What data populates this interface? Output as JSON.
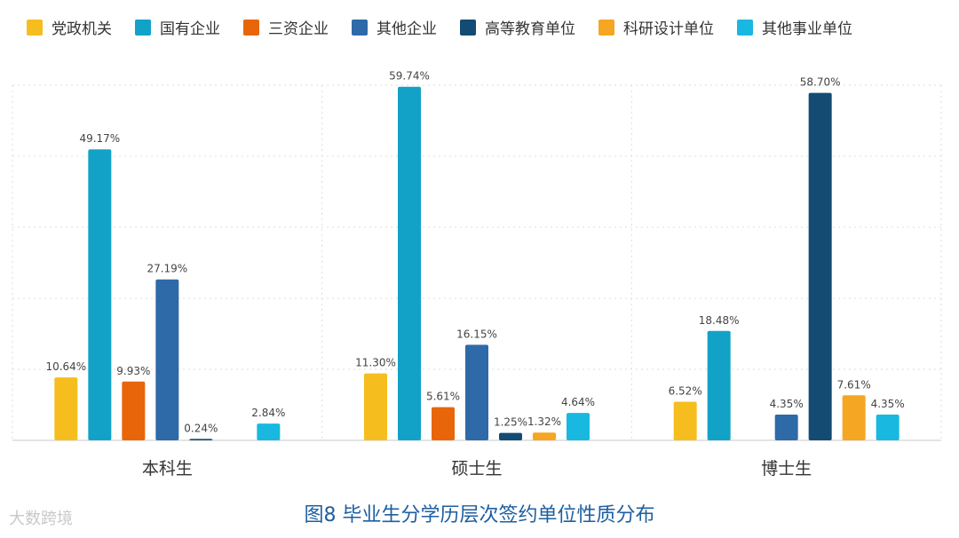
{
  "chart_data": {
    "type": "bar",
    "categories": [
      "本科生",
      "硕士生",
      "博士生"
    ],
    "series": [
      {
        "name": "党政机关",
        "color": "#f5be1e",
        "values": [
          10.64,
          11.3,
          6.52
        ]
      },
      {
        "name": "国有企业",
        "color": "#12a2c8",
        "values": [
          49.17,
          59.74,
          18.48
        ]
      },
      {
        "name": "三资企业",
        "color": "#e8650a",
        "values": [
          9.93,
          5.61,
          null
        ]
      },
      {
        "name": "其他企业",
        "color": "#2e6aa8",
        "values": [
          27.19,
          16.15,
          4.35
        ]
      },
      {
        "name": "高等教育单位",
        "color": "#134b73",
        "values": [
          0.24,
          1.25,
          58.7
        ]
      },
      {
        "name": "科研设计单位",
        "color": "#f5a623",
        "values": [
          null,
          1.32,
          7.61
        ]
      },
      {
        "name": "其他事业单位",
        "color": "#19b8e0",
        "values": [
          2.84,
          4.64,
          4.35
        ]
      }
    ],
    "labels": [
      [
        "10.64%",
        "11.30%",
        "6.52%"
      ],
      [
        "49.17%",
        "59.74%",
        "18.48%"
      ],
      [
        "9.93%",
        "5.61%",
        ""
      ],
      [
        "27.19%",
        "16.15%",
        "4.35%"
      ],
      [
        "0.24%",
        "1.25%",
        "58.70%"
      ],
      [
        "",
        "1.32%",
        "7.61%"
      ],
      [
        "2.84%",
        "4.64%",
        "4.35%"
      ]
    ],
    "ylim": [
      0,
      60
    ],
    "grid": true,
    "legend": "top"
  },
  "caption": "图8 毕业生分学历层次签约单位性质分布",
  "watermark": "大数跨境"
}
